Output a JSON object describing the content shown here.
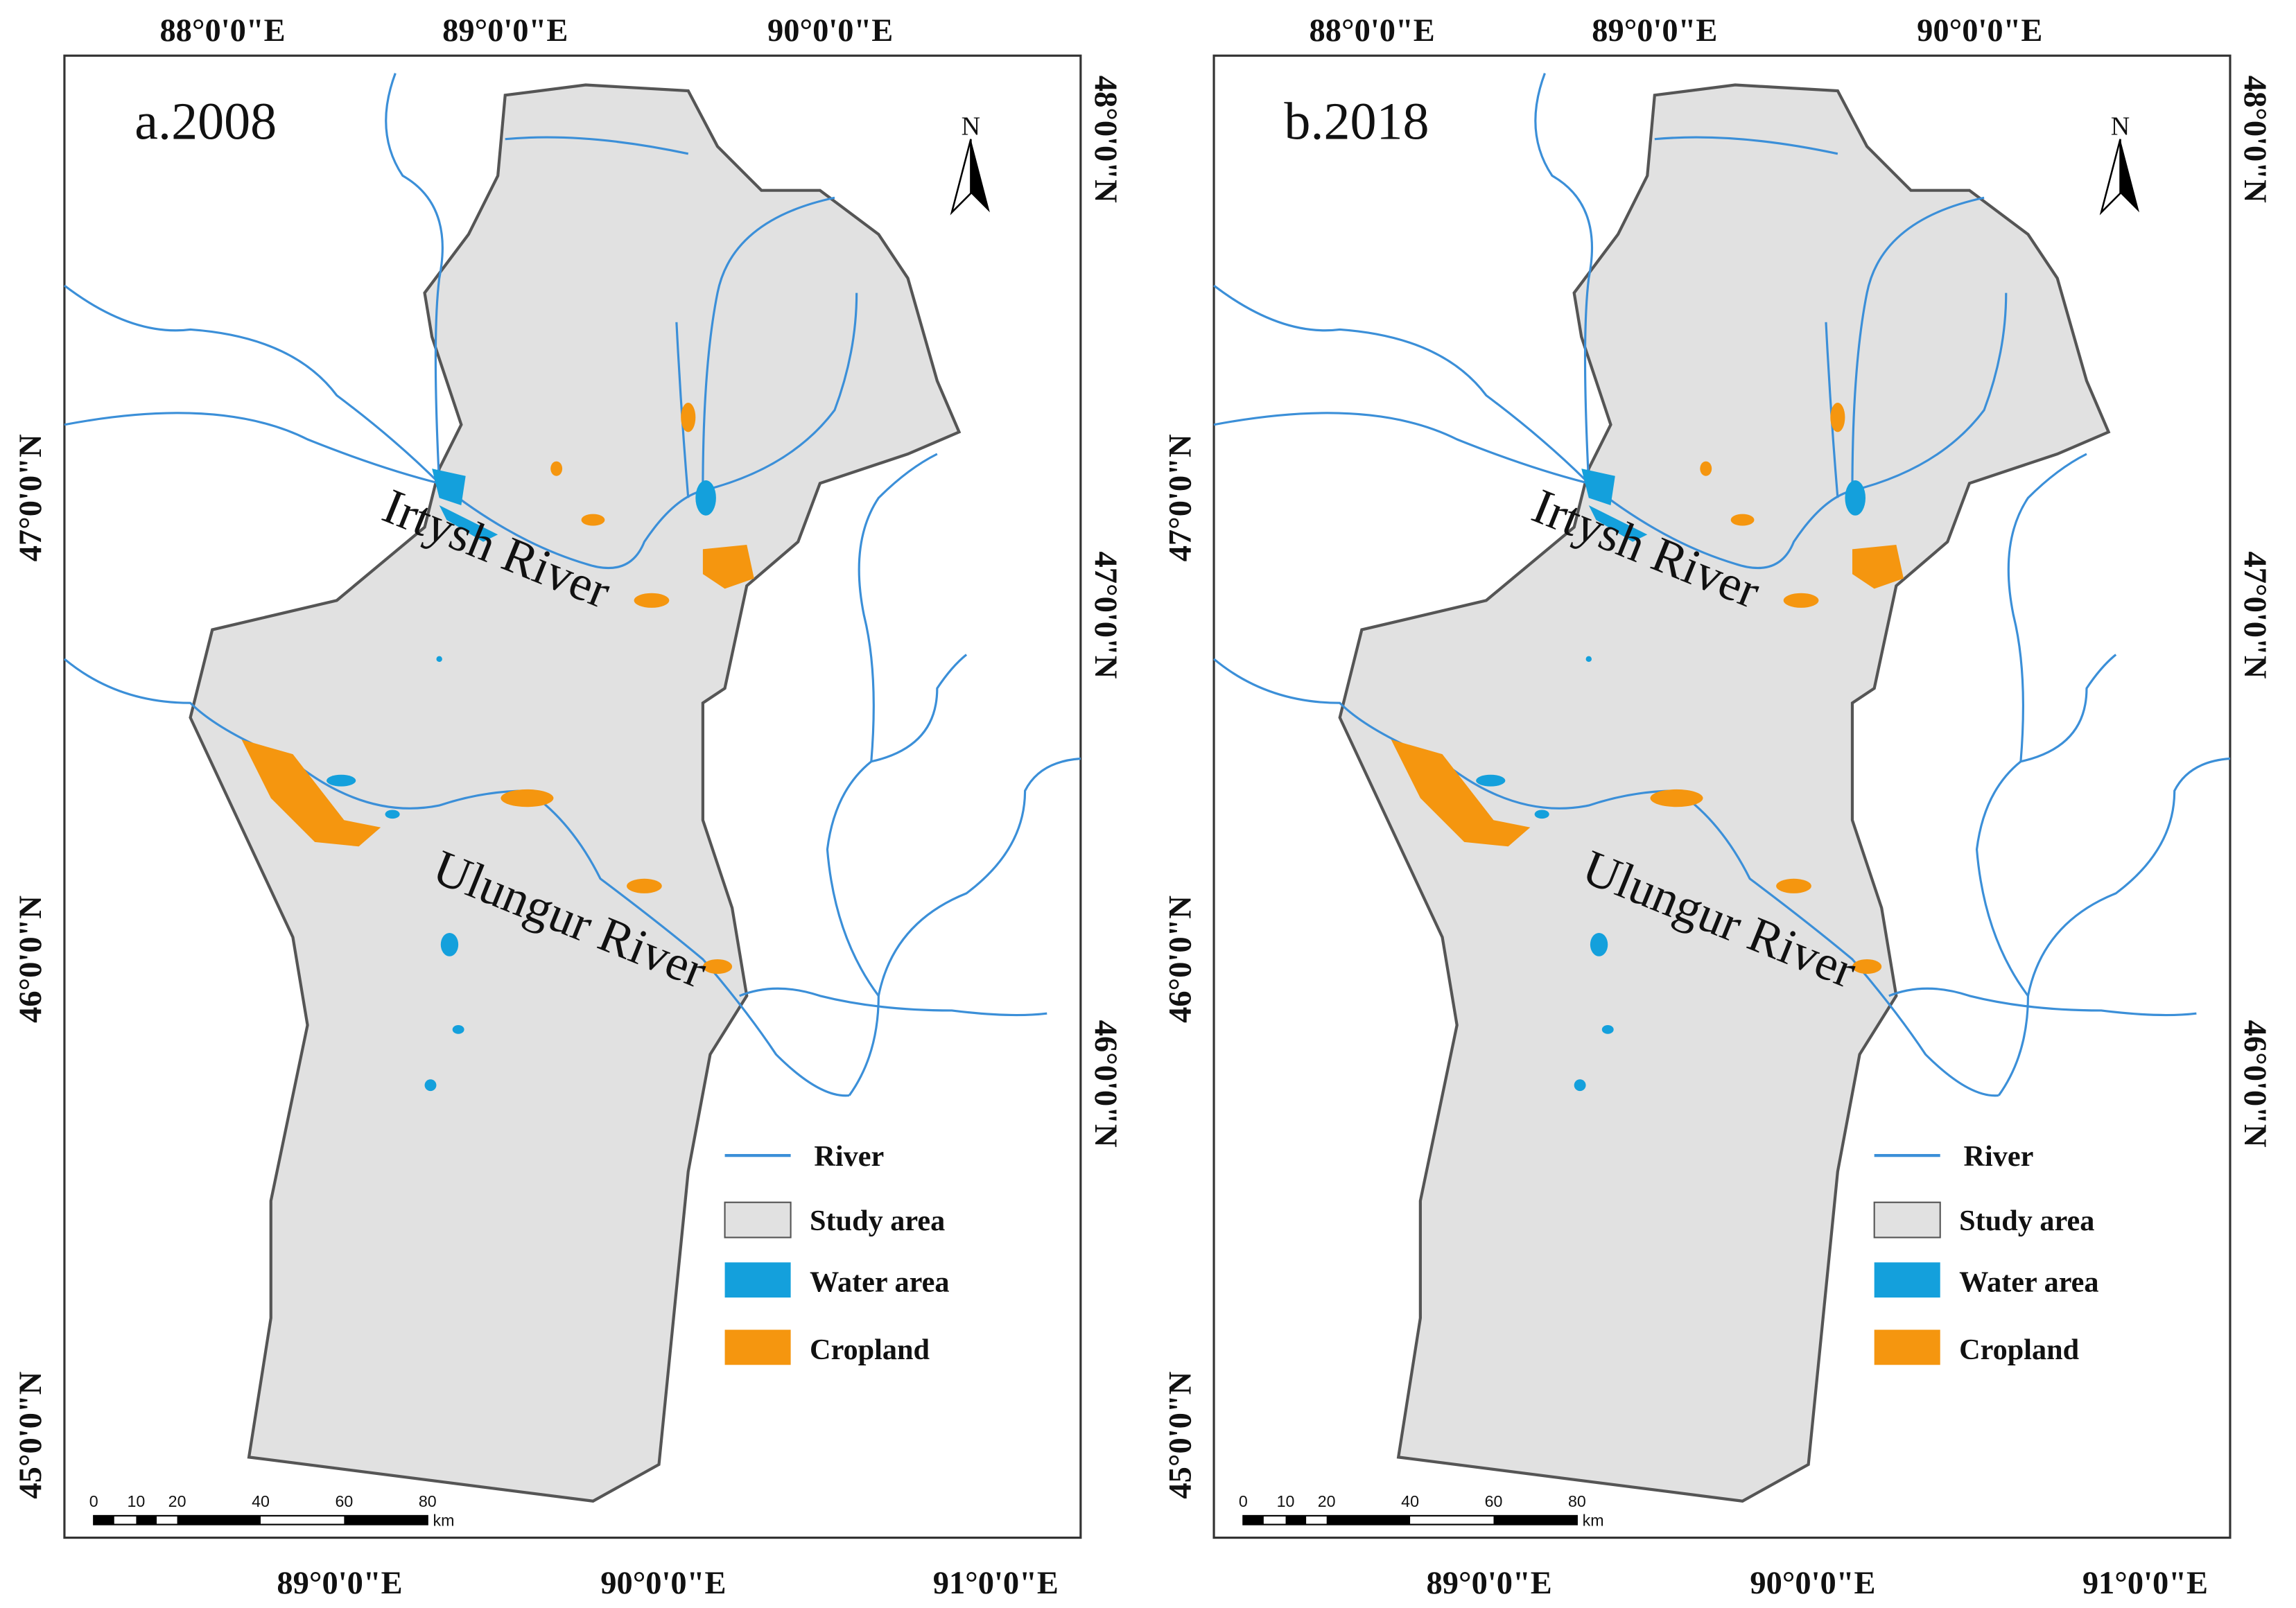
{
  "panels": [
    {
      "title": "a.2008",
      "top_labels": [
        "88°0'0\"E",
        "89°0'0\"E",
        "90°0'0\"E"
      ],
      "bottom_labels": [
        "89°0'0\"E",
        "90°0'0\"E",
        "91°0'0\"E"
      ],
      "left_labels": [
        "47°0'0\"N",
        "46°0'0\"N",
        "45°0'0\"N"
      ],
      "right_labels": [
        "48°0'0\"N",
        "47°0'0\"N",
        "46°0'0\"N"
      ],
      "rivers": [
        "Irtysh River",
        "Ulungur River"
      ],
      "north": "N",
      "legend": [
        "River",
        "Study area",
        "Water area",
        "Cropland"
      ],
      "scale": [
        "0",
        "10",
        "20",
        "40",
        "60",
        "80",
        "km"
      ]
    },
    {
      "title": "b.2018",
      "top_labels": [
        "88°0'0\"E",
        "89°0'0\"E",
        "90°0'0\"E"
      ],
      "bottom_labels": [
        "89°0'0\"E",
        "90°0'0\"E",
        "91°0'0\"E"
      ],
      "left_labels": [
        "47°0'0\"N",
        "46°0'0\"N",
        "45°0'0\"N"
      ],
      "right_labels": [
        "48°0'0\"N",
        "47°0'0\"N",
        "46°0'0\"N"
      ],
      "rivers": [
        "Irtysh River",
        "Ulungur River"
      ],
      "north": "N",
      "legend": [
        "River",
        "Study area",
        "Water area",
        "Cropland"
      ],
      "scale": [
        "0",
        "10",
        "20",
        "40",
        "60",
        "80",
        "km"
      ]
    }
  ]
}
